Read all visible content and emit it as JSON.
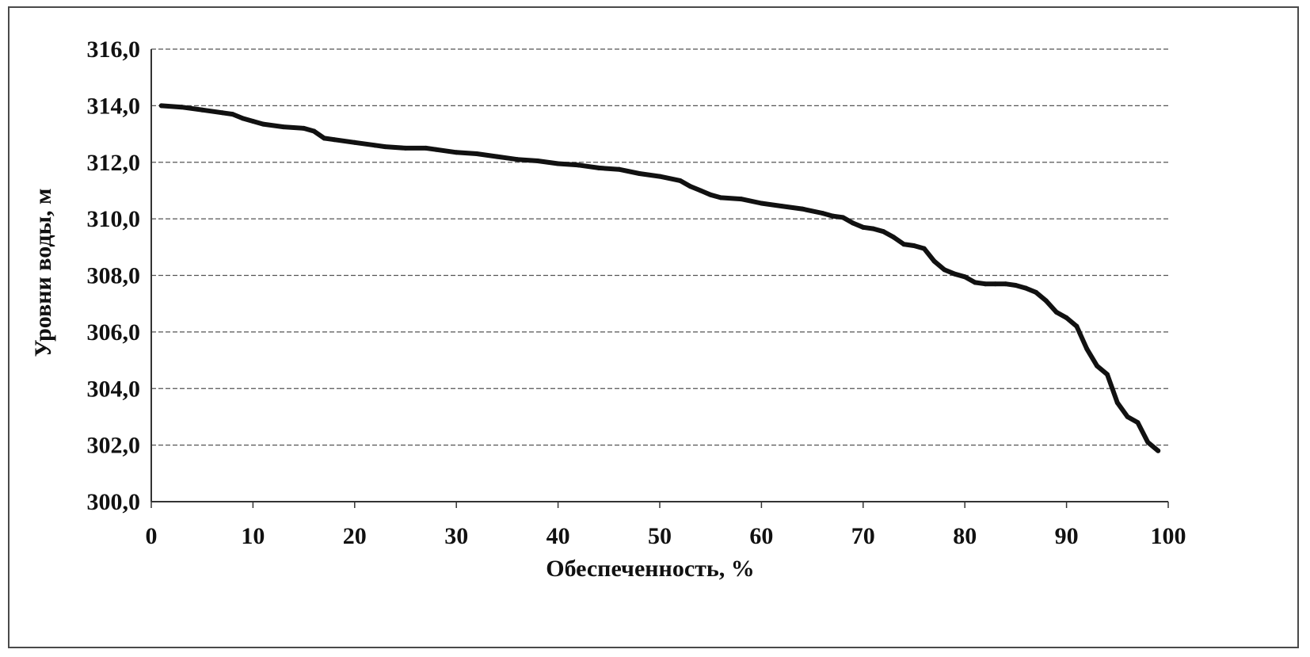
{
  "chart_data": {
    "type": "line",
    "xlabel": "Обеспеченность, %",
    "ylabel": "Уровни воды, м",
    "xlim": [
      0,
      100
    ],
    "ylim": [
      300,
      316
    ],
    "x_ticks": [
      "0",
      "10",
      "20",
      "30",
      "40",
      "50",
      "60",
      "70",
      "80",
      "90",
      "100"
    ],
    "y_ticks": [
      "300,0",
      "302,0",
      "304,0",
      "306,0",
      "308,0",
      "310,0",
      "312,0",
      "314,0",
      "316,0"
    ],
    "grid": true,
    "legend": "none",
    "line_color": "#111111",
    "series": [
      {
        "x": [
          1,
          3,
          5,
          7,
          8,
          9,
          10,
          11,
          13,
          15,
          16,
          17,
          18,
          20,
          22,
          23,
          25,
          27,
          28,
          30,
          32,
          34,
          36,
          38,
          40,
          42,
          44,
          46,
          48,
          50,
          52,
          53,
          54,
          55,
          56,
          58,
          60,
          62,
          64,
          66,
          67,
          68,
          69,
          70,
          71,
          72,
          73,
          74,
          75,
          76,
          77,
          78,
          79,
          80,
          81,
          82,
          83,
          84,
          85,
          86,
          87,
          88,
          89,
          90,
          91,
          92,
          93,
          94,
          95,
          96,
          97,
          98,
          99
        ],
        "y": [
          314.0,
          313.95,
          313.85,
          313.75,
          313.7,
          313.55,
          313.45,
          313.35,
          313.25,
          313.2,
          313.1,
          312.85,
          312.8,
          312.7,
          312.6,
          312.55,
          312.5,
          312.5,
          312.45,
          312.35,
          312.3,
          312.2,
          312.1,
          312.05,
          311.95,
          311.9,
          311.8,
          311.75,
          311.6,
          311.5,
          311.35,
          311.15,
          311.0,
          310.85,
          310.75,
          310.7,
          310.55,
          310.45,
          310.35,
          310.2,
          310.1,
          310.05,
          309.85,
          309.7,
          309.65,
          309.55,
          309.35,
          309.1,
          309.05,
          308.95,
          308.5,
          308.2,
          308.05,
          307.95,
          307.75,
          307.7,
          307.7,
          307.7,
          307.65,
          307.55,
          307.4,
          307.1,
          306.7,
          306.5,
          306.2,
          305.4,
          304.8,
          304.5,
          303.5,
          303.0,
          302.8,
          302.1,
          301.8
        ]
      }
    ]
  }
}
